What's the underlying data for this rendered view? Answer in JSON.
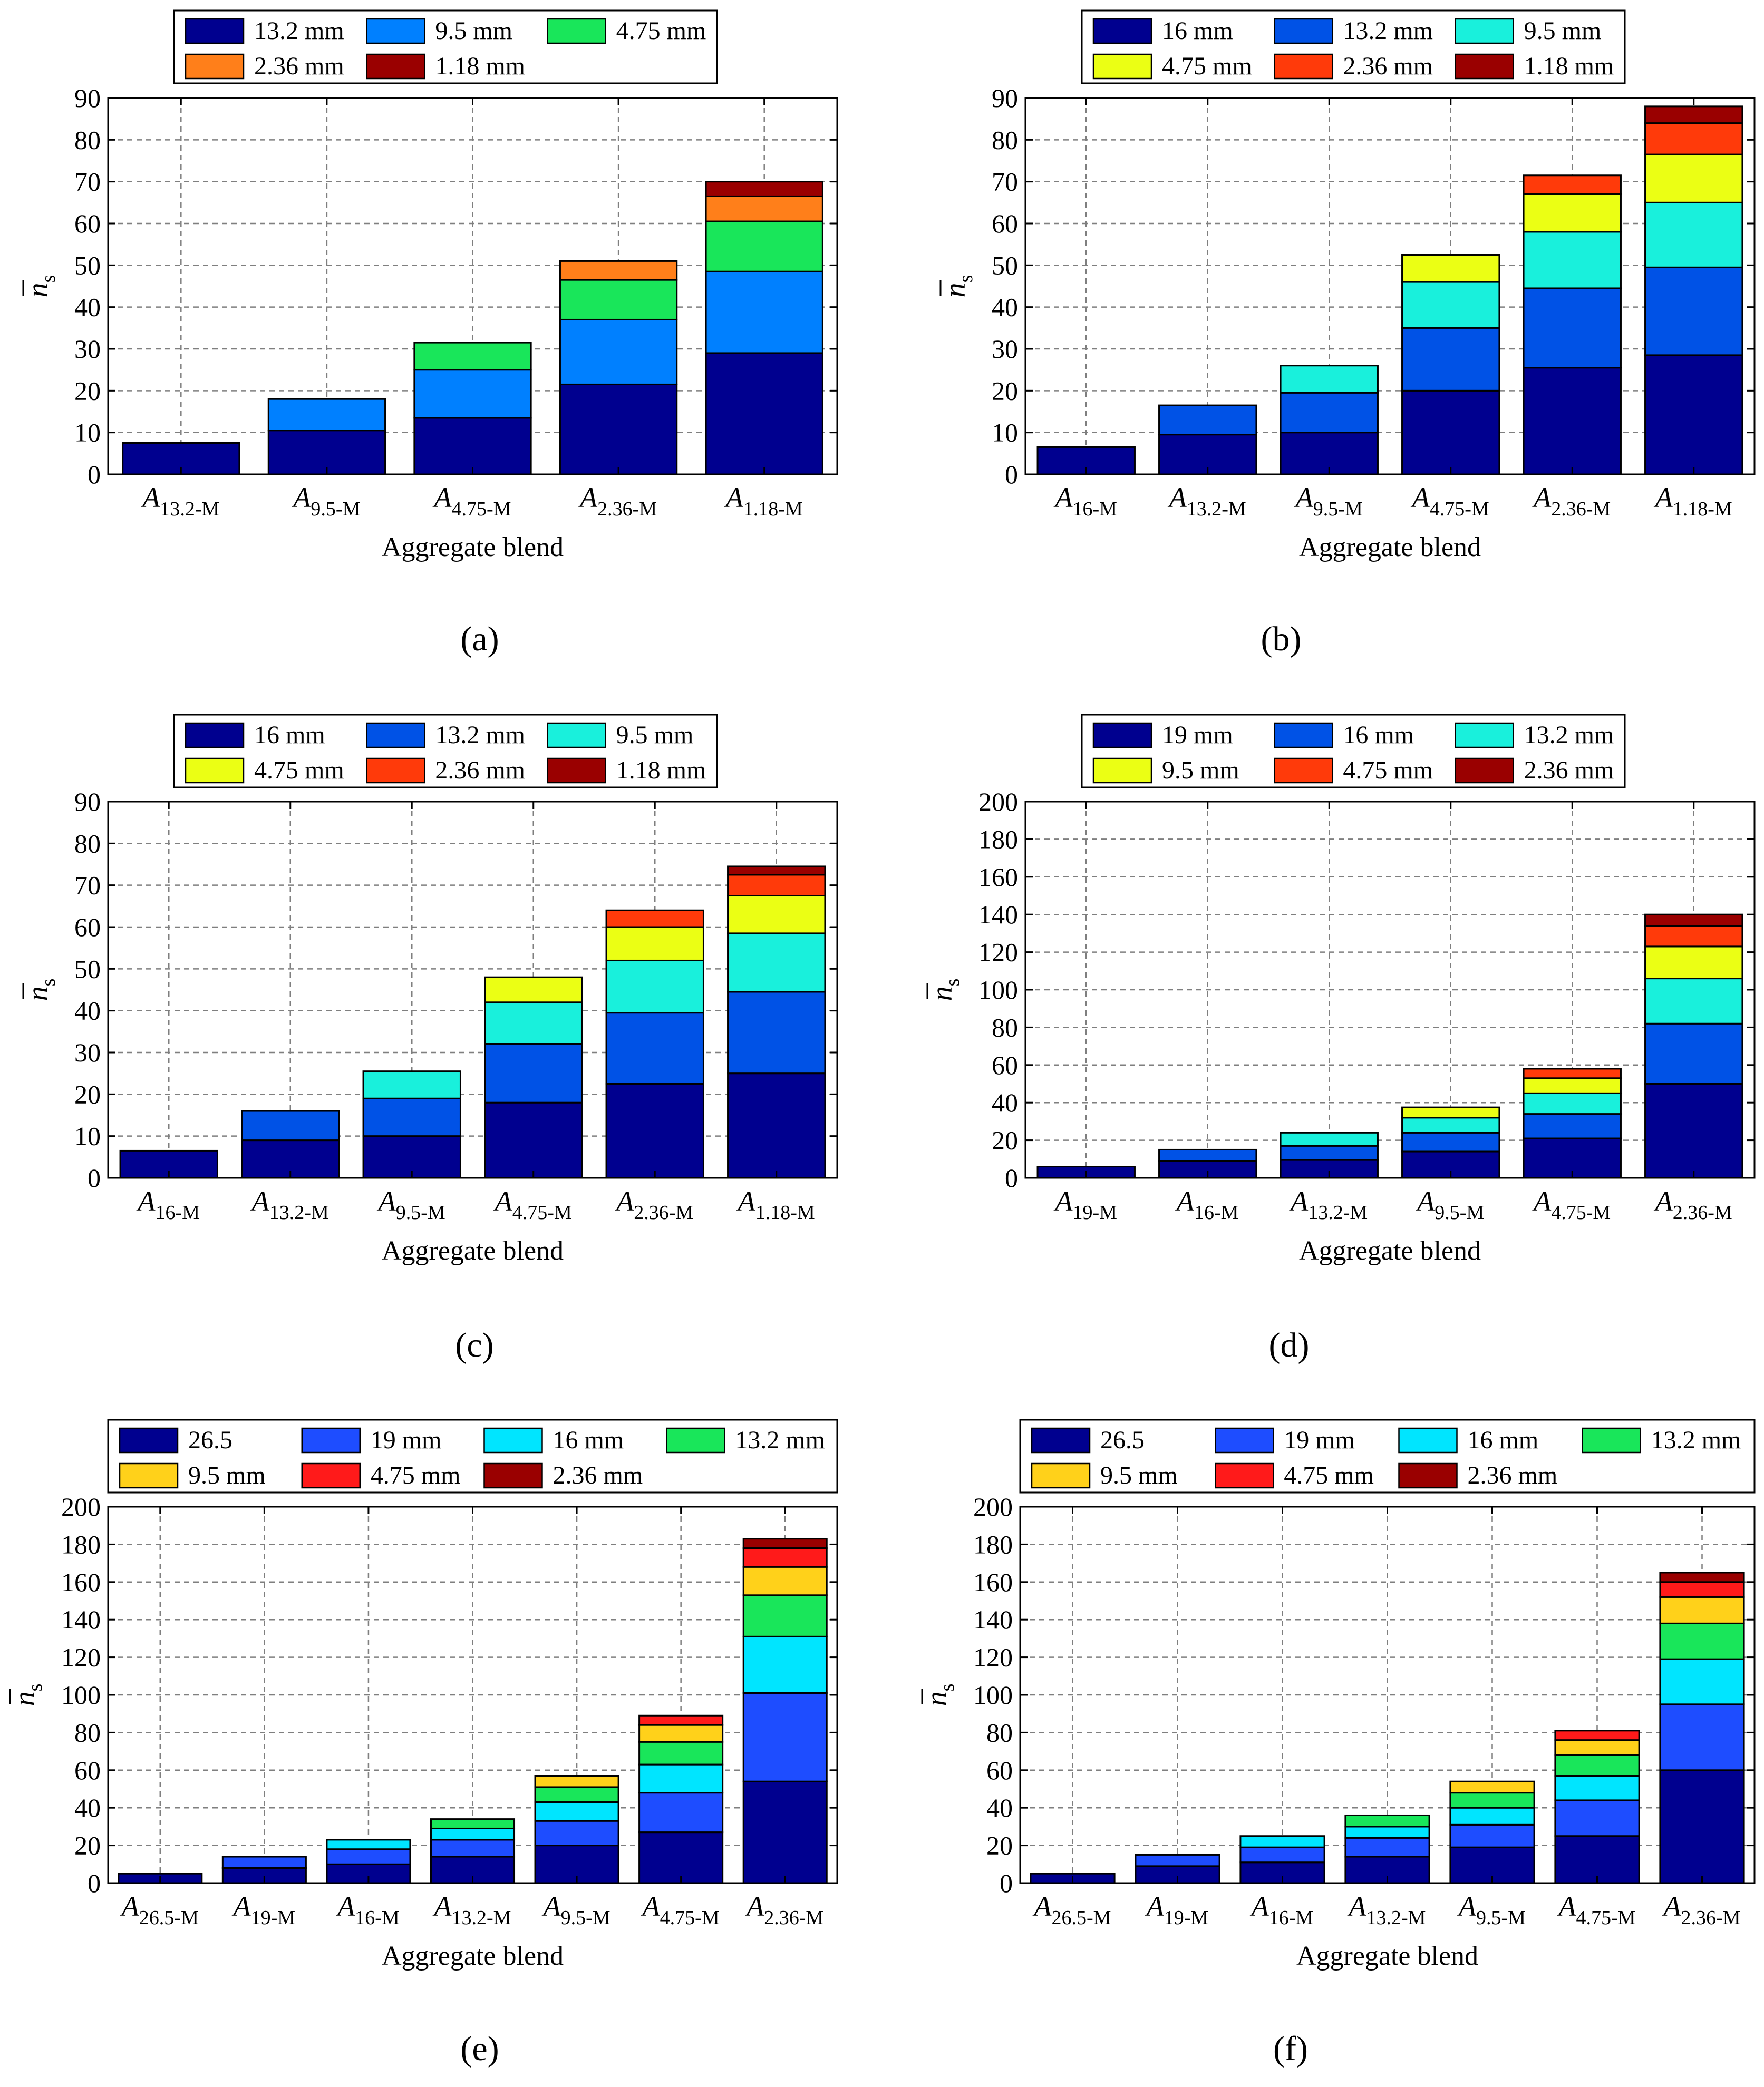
{
  "figure": {
    "captions": [
      "(a)",
      "(b)",
      "(c)",
      "(d)",
      "(e)",
      "(f)"
    ]
  },
  "colors": {
    "c0": "#00008F",
    "c1": "#0052E6",
    "c2": "#0080FF",
    "c3": "#1E4DFF",
    "c4": "#00E5FF",
    "c5": "#19F0DC",
    "c6": "#19E65A",
    "c7": "#EBFF14",
    "c8": "#FFD11A",
    "c9": "#FF7F1A",
    "c10": "#FF3A0A",
    "c11": "#FF1A1A",
    "c12": "#9A0000",
    "grid": "#7f7f7f",
    "axis": "#000000"
  },
  "chart_data": [
    {
      "type": "bar",
      "stacked": true,
      "panel": "(a)",
      "title": "",
      "xlabel": "Aggregate blend",
      "ylabel": "n̄s",
      "ylabel_main": "n",
      "ylabel_sub": "s",
      "ylim": [
        0,
        90
      ],
      "yticks": [
        0,
        10,
        20,
        30,
        40,
        50,
        60,
        70,
        80,
        90
      ],
      "grid": true,
      "legend_position": "top",
      "legend_cols": 3,
      "categories": [
        {
          "main": "A",
          "sub": "13.2-M"
        },
        {
          "main": "A",
          "sub": "9.5-M"
        },
        {
          "main": "A",
          "sub": "4.75-M"
        },
        {
          "main": "A",
          "sub": "2.36-M"
        },
        {
          "main": "A",
          "sub": "1.18-M"
        }
      ],
      "series": [
        {
          "name": "13.2 mm",
          "color": "#00008F",
          "values": [
            7.5,
            10.5,
            13.5,
            21.5,
            29
          ]
        },
        {
          "name": "9.5 mm",
          "color": "#0080FF",
          "values": [
            0,
            7.5,
            11.5,
            15.5,
            19.5
          ]
        },
        {
          "name": "4.75 mm",
          "color": "#19E65A",
          "values": [
            0,
            0,
            6.5,
            9.5,
            12
          ]
        },
        {
          "name": "2.36 mm",
          "color": "#FF7F1A",
          "values": [
            0,
            0,
            0,
            4.5,
            6
          ]
        },
        {
          "name": "1.18 mm",
          "color": "#9A0000",
          "values": [
            0,
            0,
            0,
            0,
            3.5
          ]
        }
      ]
    },
    {
      "type": "bar",
      "stacked": true,
      "panel": "(b)",
      "title": "",
      "xlabel": "Aggregate blend",
      "ylabel": "n̄s",
      "ylabel_main": "n",
      "ylabel_sub": "s",
      "ylim": [
        0,
        90
      ],
      "yticks": [
        0,
        10,
        20,
        30,
        40,
        50,
        60,
        70,
        80,
        90
      ],
      "grid": true,
      "legend_position": "top",
      "legend_cols": 3,
      "categories": [
        {
          "main": "A",
          "sub": "16-M"
        },
        {
          "main": "A",
          "sub": "13.2-M"
        },
        {
          "main": "A",
          "sub": "9.5-M"
        },
        {
          "main": "A",
          "sub": "4.75-M"
        },
        {
          "main": "A",
          "sub": "2.36-M"
        },
        {
          "main": "A",
          "sub": "1.18-M"
        }
      ],
      "series": [
        {
          "name": "16 mm",
          "color": "#00008F",
          "values": [
            6.5,
            9.5,
            10,
            20,
            25.5,
            28.5
          ]
        },
        {
          "name": "13.2 mm",
          "color": "#0052E6",
          "values": [
            0,
            7,
            9.5,
            15,
            19,
            21
          ]
        },
        {
          "name": "9.5 mm",
          "color": "#19F0DC",
          "values": [
            0,
            0,
            6.5,
            11,
            13.5,
            15.5
          ]
        },
        {
          "name": "4.75 mm",
          "color": "#EBFF14",
          "values": [
            0,
            0,
            0,
            6.5,
            9,
            11.5
          ]
        },
        {
          "name": "2.36 mm",
          "color": "#FF3A0A",
          "values": [
            0,
            0,
            0,
            0,
            4.5,
            7.5
          ]
        },
        {
          "name": "1.18 mm",
          "color": "#9A0000",
          "values": [
            0,
            0,
            0,
            0,
            0,
            4
          ]
        }
      ]
    },
    {
      "type": "bar",
      "stacked": true,
      "panel": "(c)",
      "title": "",
      "xlabel": "Aggregate blend",
      "ylabel": "n̄s",
      "ylabel_main": "n",
      "ylabel_sub": "s",
      "ylim": [
        0,
        90
      ],
      "yticks": [
        0,
        10,
        20,
        30,
        40,
        50,
        60,
        70,
        80,
        90
      ],
      "grid": true,
      "legend_position": "top",
      "legend_cols": 3,
      "categories": [
        {
          "main": "A",
          "sub": "16-M"
        },
        {
          "main": "A",
          "sub": "13.2-M"
        },
        {
          "main": "A",
          "sub": "9.5-M"
        },
        {
          "main": "A",
          "sub": "4.75-M"
        },
        {
          "main": "A",
          "sub": "2.36-M"
        },
        {
          "main": "A",
          "sub": "1.18-M"
        }
      ],
      "series": [
        {
          "name": "16 mm",
          "color": "#00008F",
          "values": [
            6.5,
            9,
            10,
            18,
            22.5,
            25
          ]
        },
        {
          "name": "13.2 mm",
          "color": "#0052E6",
          "values": [
            0,
            7,
            9,
            14,
            17,
            19.5
          ]
        },
        {
          "name": "9.5 mm",
          "color": "#19F0DC",
          "values": [
            0,
            0,
            6.5,
            10,
            12.5,
            14
          ]
        },
        {
          "name": "4.75 mm",
          "color": "#EBFF14",
          "values": [
            0,
            0,
            0,
            6,
            8,
            9
          ]
        },
        {
          "name": "2.36 mm",
          "color": "#FF3A0A",
          "values": [
            0,
            0,
            0,
            0,
            4,
            5
          ]
        },
        {
          "name": "1.18 mm",
          "color": "#9A0000",
          "values": [
            0,
            0,
            0,
            0,
            0,
            2
          ]
        }
      ]
    },
    {
      "type": "bar",
      "stacked": true,
      "panel": "(d)",
      "title": "",
      "xlabel": "Aggregate blend",
      "ylabel": "n̄s",
      "ylabel_main": "n",
      "ylabel_sub": "s",
      "ylim": [
        0,
        200
      ],
      "yticks": [
        0,
        20,
        40,
        60,
        80,
        100,
        120,
        140,
        160,
        180,
        200
      ],
      "grid": true,
      "legend_position": "top",
      "legend_cols": 3,
      "categories": [
        {
          "main": "A",
          "sub": "19-M"
        },
        {
          "main": "A",
          "sub": "16-M"
        },
        {
          "main": "A",
          "sub": "13.2-M"
        },
        {
          "main": "A",
          "sub": "9.5-M"
        },
        {
          "main": "A",
          "sub": "4.75-M"
        },
        {
          "main": "A",
          "sub": "2.36-M"
        }
      ],
      "series": [
        {
          "name": "19 mm",
          "color": "#00008F",
          "values": [
            6,
            9,
            9.5,
            14,
            21,
            50
          ]
        },
        {
          "name": "16 mm",
          "color": "#0052E6",
          "values": [
            0,
            6,
            7.5,
            10,
            13,
            32
          ]
        },
        {
          "name": "13.2 mm",
          "color": "#19F0DC",
          "values": [
            0,
            0,
            7,
            8,
            11,
            24
          ]
        },
        {
          "name": "9.5 mm",
          "color": "#EBFF14",
          "values": [
            0,
            0,
            0,
            5.5,
            8,
            17
          ]
        },
        {
          "name": "4.75 mm",
          "color": "#FF3A0A",
          "values": [
            0,
            0,
            0,
            0,
            5,
            11
          ]
        },
        {
          "name": "2.36 mm",
          "color": "#9A0000",
          "values": [
            0,
            0,
            0,
            0,
            0,
            6
          ]
        }
      ]
    },
    {
      "type": "bar",
      "stacked": true,
      "panel": "(e)",
      "title": "",
      "xlabel": "Aggregate blend",
      "ylabel": "n̄s",
      "ylabel_main": "n",
      "ylabel_sub": "s",
      "ylim": [
        0,
        200
      ],
      "yticks": [
        0,
        20,
        40,
        60,
        80,
        100,
        120,
        140,
        160,
        180,
        200
      ],
      "grid": true,
      "legend_position": "top",
      "legend_cols": 4,
      "categories": [
        {
          "main": "A",
          "sub": "26.5-M"
        },
        {
          "main": "A",
          "sub": "19-M"
        },
        {
          "main": "A",
          "sub": "16-M"
        },
        {
          "main": "A",
          "sub": "13.2-M"
        },
        {
          "main": "A",
          "sub": "9.5-M"
        },
        {
          "main": "A",
          "sub": "4.75-M"
        },
        {
          "main": "A",
          "sub": "2.36-M"
        }
      ],
      "series": [
        {
          "name": "26.5",
          "color": "#00008F",
          "values": [
            5,
            8,
            10,
            14,
            20,
            27,
            54
          ]
        },
        {
          "name": "19 mm",
          "color": "#1E4DFF",
          "values": [
            0,
            6,
            8,
            9,
            13,
            21,
            47
          ]
        },
        {
          "name": "16 mm",
          "color": "#00E5FF",
          "values": [
            0,
            0,
            5,
            6,
            10,
            15,
            30
          ]
        },
        {
          "name": "13.2 mm",
          "color": "#19E65A",
          "values": [
            0,
            0,
            0,
            5,
            8,
            12,
            22
          ]
        },
        {
          "name": "9.5 mm",
          "color": "#FFD11A",
          "values": [
            0,
            0,
            0,
            0,
            6,
            9,
            15
          ]
        },
        {
          "name": "4.75 mm",
          "color": "#FF1A1A",
          "values": [
            0,
            0,
            0,
            0,
            0,
            5,
            10
          ]
        },
        {
          "name": "2.36 mm",
          "color": "#9A0000",
          "values": [
            0,
            0,
            0,
            0,
            0,
            0,
            5
          ]
        }
      ]
    },
    {
      "type": "bar",
      "stacked": true,
      "panel": "(f)",
      "title": "",
      "xlabel": "Aggregate blend",
      "ylabel": "n̄s",
      "ylabel_main": "n",
      "ylabel_sub": "s",
      "ylim": [
        0,
        200
      ],
      "yticks": [
        0,
        20,
        40,
        60,
        80,
        100,
        120,
        140,
        160,
        180,
        200
      ],
      "grid": true,
      "legend_position": "top",
      "legend_cols": 4,
      "categories": [
        {
          "main": "A",
          "sub": "26.5-M"
        },
        {
          "main": "A",
          "sub": "19-M"
        },
        {
          "main": "A",
          "sub": "16-M"
        },
        {
          "main": "A",
          "sub": "13.2-M"
        },
        {
          "main": "A",
          "sub": "9.5-M"
        },
        {
          "main": "A",
          "sub": "4.75-M"
        },
        {
          "main": "A",
          "sub": "2.36-M"
        }
      ],
      "series": [
        {
          "name": "26.5",
          "color": "#00008F",
          "values": [
            5,
            9,
            11,
            14,
            19,
            25,
            60
          ]
        },
        {
          "name": "19 mm",
          "color": "#1E4DFF",
          "values": [
            0,
            6,
            8,
            10,
            12,
            19,
            35
          ]
        },
        {
          "name": "16 mm",
          "color": "#00E5FF",
          "values": [
            0,
            0,
            6,
            6,
            9,
            13,
            24
          ]
        },
        {
          "name": "13.2 mm",
          "color": "#19E65A",
          "values": [
            0,
            0,
            0,
            6,
            8,
            11,
            19
          ]
        },
        {
          "name": "9.5 mm",
          "color": "#FFD11A",
          "values": [
            0,
            0,
            0,
            0,
            6,
            8,
            14
          ]
        },
        {
          "name": "4.75 mm",
          "color": "#FF1A1A",
          "values": [
            0,
            0,
            0,
            0,
            0,
            5,
            8
          ]
        },
        {
          "name": "2.36 mm",
          "color": "#9A0000",
          "values": [
            0,
            0,
            0,
            0,
            0,
            0,
            5
          ]
        }
      ]
    }
  ]
}
